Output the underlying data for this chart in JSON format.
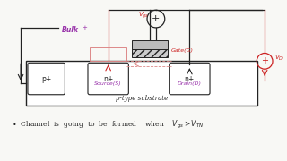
{
  "bg_color": "#f8f8f5",
  "purple": "#9933aa",
  "red": "#cc2222",
  "pink": "#dd8888",
  "dark": "#222222",
  "gray": "#888888",
  "hatch_color": "#555555",
  "substrate_label": "p-type substrate",
  "p_plus_label": "p+",
  "n_plus_left_label": "n+",
  "n_plus_right_label": "n+",
  "source_label": "Source(S)",
  "drain_label": "Drain(D)",
  "gate_label": "Gate(G)",
  "bulk_label": "Bulk",
  "vgs_label": "V_gs",
  "vds_label": "V_D",
  "bottom_text": "Channel  is  going  to  be  formed    when    V_gs > V_TN"
}
